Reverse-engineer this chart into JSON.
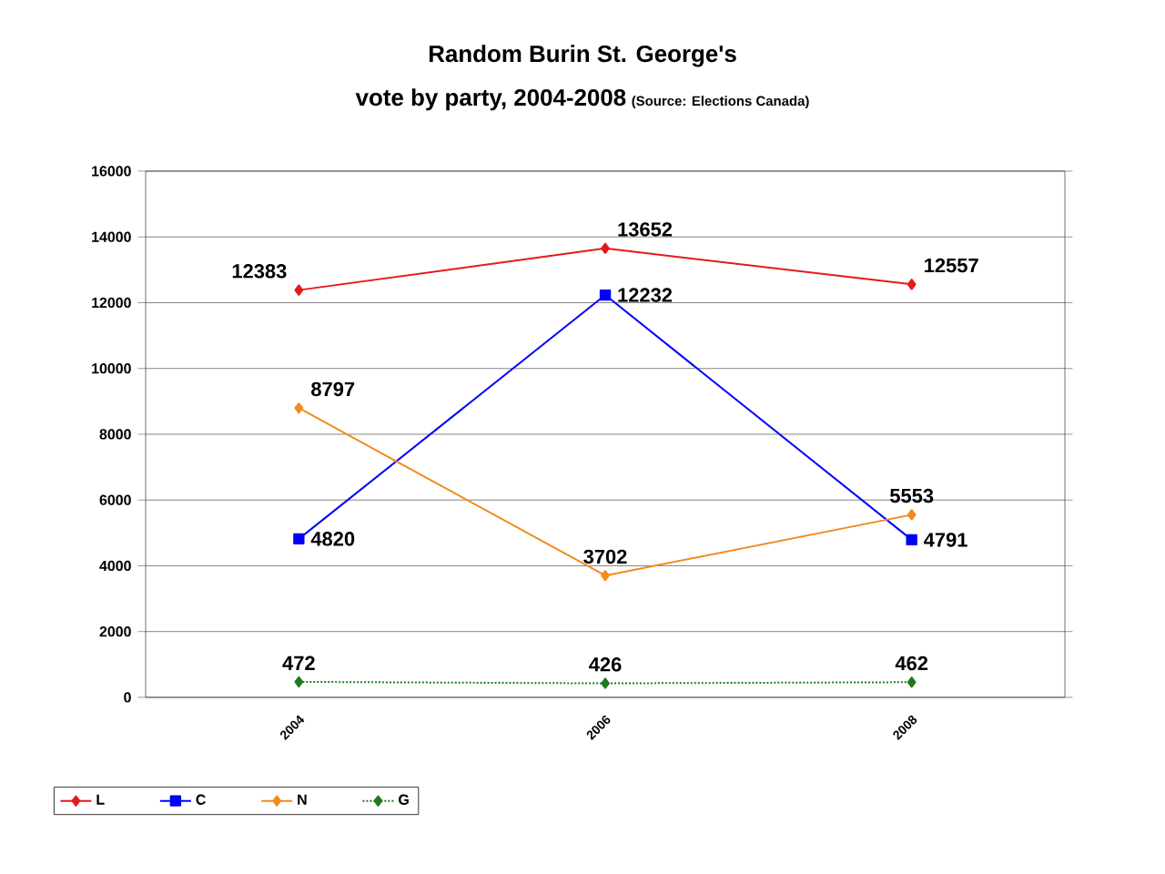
{
  "chart_data": {
    "type": "line",
    "title": "Random Burin St. George's",
    "subtitle": "vote by party, 2004-2008",
    "annotations": [
      "(Source: Elections Canada)"
    ],
    "categories": [
      "2004",
      "2006",
      "2008"
    ],
    "series": [
      {
        "name": "L",
        "color": "#e31a1c",
        "values": [
          12383,
          13652,
          12557
        ],
        "marker": "diamond"
      },
      {
        "name": "C",
        "color": "#0000ff",
        "values": [
          4820,
          12232,
          4791
        ],
        "marker": "square"
      },
      {
        "name": "N",
        "color": "#f28a1e",
        "values": [
          8797,
          3702,
          5553
        ],
        "marker": "diamond"
      },
      {
        "name": "G",
        "color": "#1f7a1f",
        "values": [
          472,
          426,
          462
        ],
        "marker": "diamond",
        "line_style": "dotted"
      }
    ],
    "ylim": [
      0,
      16000
    ],
    "yticks": [
      0,
      2000,
      4000,
      6000,
      8000,
      10000,
      12000,
      14000,
      16000
    ],
    "grid": "y",
    "legend": "bottom",
    "data_labels": true
  }
}
